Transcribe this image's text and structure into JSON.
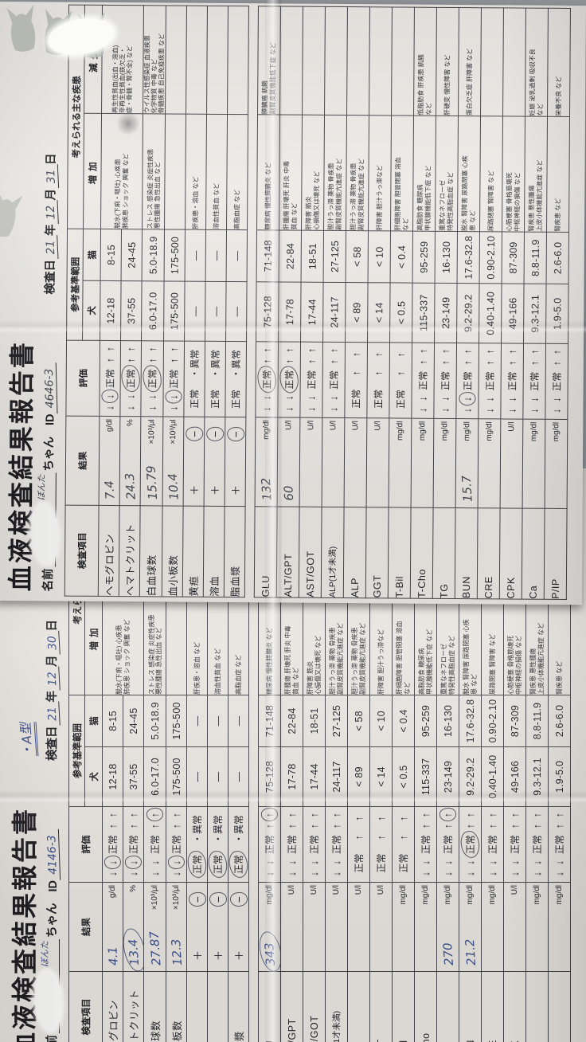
{
  "photo": {
    "background_color": "#8d9196",
    "paper_color_top_sheet": "#edeae6",
    "paper_color_bottom_sheet": "#e9e5e0",
    "pen_color_top_sheet": "#474a55",
    "pen_color_bottom_sheet": "#3c4f8c",
    "stamp_color": "#aeb2ab",
    "stamps": [
      "cat-stamp",
      "cat-stamp",
      "cat-stamp",
      "cat-stamp-partial"
    ]
  },
  "form": {
    "title": "血液検査結果報告書",
    "name_label": "名前",
    "name_suffix": "ちゃん",
    "id_label": "ID",
    "date_label": "検査日",
    "year_label": "年",
    "month_label": "月",
    "day_label": "日",
    "columns": {
      "item": "検査項目",
      "result": "結果",
      "evaluation": "評価",
      "range": "参考基準範囲",
      "dog": "犬",
      "cat": "猫",
      "disease": "考えられる主な疾患",
      "increase": "増加",
      "decrease": "減少"
    },
    "eval_glyphs": {
      "down": "↓",
      "up": "↑",
      "normal": "正常",
      "abnormal": "異常",
      "dot": "・"
    },
    "pm_glyphs": {
      "plus": "＋",
      "minus": "−"
    },
    "dash": "—",
    "table1_rows": [
      {
        "name": "ヘモグロビン",
        "unit": "g/dl",
        "eval_type": "full",
        "dog": "12-18",
        "cat": "8-15",
        "increase": "脱水(下痢・嘔吐) 心疾患\n肺疾患 ショック 興奮 など",
        "decrease": "再生性貧血(出血・溶血)\n非再生性貧血(鉄欠乏・\n症・骨髄・腎不全) など",
        "disease_rowspan": 2
      },
      {
        "name": "ヘマトクリット",
        "unit": "%",
        "eval_type": "full",
        "dog": "37-55",
        "cat": "24-45",
        "disease_skip": true
      },
      {
        "name": "白血球数",
        "unit": "×10³/μl",
        "eval_type": "full",
        "dog": "6.0-17.0",
        "cat": "5.0-18.9",
        "increase": "ストレス 感染症 炎症性疾患\n悪性腫瘍 急性出血 など",
        "decrease": "ウイルス性感染症 血液疾患\n化学物質 中毒 など\n骨髄疾患 自己免疫疾患 など"
      },
      {
        "name": "血小板数",
        "unit": "×10³/μl",
        "eval_type": "full",
        "dog": "175-500",
        "cat": "175-500",
        "increase": "",
        "decrease": ""
      },
      {
        "name": "黄疸",
        "unit": "",
        "eval_type": "pm",
        "dog": "—",
        "cat": "—",
        "increase": "肝疾患・溶血 など",
        "decrease": ""
      },
      {
        "name": "溶血",
        "unit": "",
        "eval_type": "pm",
        "dog": "—",
        "cat": "—",
        "increase": "溶血性貧血 など",
        "decrease": ""
      },
      {
        "name": "脂血漿",
        "unit": "",
        "eval_type": "pm",
        "dog": "—",
        "cat": "—",
        "increase": "高脂血症 など",
        "decrease": ""
      }
    ],
    "table2_rows": [
      {
        "name": "GLU",
        "unit": "mg/dl",
        "eval_type": "full",
        "dog": "75-128",
        "cat": "71-148",
        "increase": "糖尿病 慢性膵臓炎 など",
        "decrease": "膵臓癌 飢餓\n副腎皮質機能低下症 など"
      },
      {
        "name": "ALT/GPT",
        "unit": "U/l",
        "eval_type": "full",
        "dog": "17-78",
        "cat": "22-84",
        "increase": "肝腫瘍 肝壊死 肝炎 中毒\n貧血 など",
        "decrease": ""
      },
      {
        "name": "AST/GOT",
        "unit": "U/l",
        "eval_type": "full",
        "dog": "17-44",
        "cat": "18-51",
        "increase": "肝障害 筋炎\n心損傷又は壊死 など",
        "decrease": ""
      },
      {
        "name": "ALP(1才未満)",
        "unit": "U/l",
        "eval_type": "full",
        "dog": "24-117",
        "cat": "27-125",
        "increase": "胆汁うっ滞 薬物 骨疾患\n副腎皮質機能亢進症 など",
        "decrease": "",
        "name_small": true
      },
      {
        "name": "ALP",
        "unit": "U/l",
        "eval_type": "up",
        "dog": "< 89",
        "cat": "< 58",
        "increase": "胆汁うっ滞 薬物 骨疾患\n副腎皮質機能亢進症 など",
        "decrease": ""
      },
      {
        "name": "GGT",
        "unit": "U/l",
        "eval_type": "up",
        "dog": "< 14",
        "cat": "< 10",
        "increase": "肝障害 胆汁うっ滞など",
        "decrease": ""
      },
      {
        "name": "T-Bil",
        "unit": "mg/dl",
        "eval_type": "up",
        "dog": "< 0.5",
        "cat": "< 0.4",
        "increase": "肝細胞障害 胆管閉塞 溶血\nなど",
        "decrease": ""
      },
      {
        "name": "T-Cho",
        "unit": "mg/dl",
        "eval_type": "full",
        "dog": "115-337",
        "cat": "95-259",
        "increase": "高脂肪食 糖尿病\n甲状腺機能低下症 など",
        "decrease": "低脂肪食 肝疾患 飢餓\nなど"
      },
      {
        "name": "TG",
        "unit": "mg/dl",
        "eval_type": "full",
        "dog": "23-149",
        "cat": "16-130",
        "increase": "重篤なネフローゼ\n特発性高脂血症 など",
        "decrease": "肝硬変 慢性障害 など"
      },
      {
        "name": "BUN",
        "unit": "mg/dl",
        "eval_type": "full",
        "dog": "9.2-29.2",
        "cat": "17.6-32.8",
        "increase": "脱水 腎障害 尿路閉塞 心疾\n患 など",
        "decrease": "蛋白欠乏症 肝障害 など"
      },
      {
        "name": "CRE",
        "unit": "mg/dl",
        "eval_type": "full",
        "dog": "0.40-1.40",
        "cat": "0.90-2.10",
        "increase": "尿路閉塞 腎障害 など",
        "decrease": ""
      },
      {
        "name": "CPK",
        "unit": "U/l",
        "eval_type": "full",
        "dog": "49-166",
        "cat": "87-309",
        "increase": "心筋梗塞 骨格筋壊死\n中枢神経の損傷 など",
        "decrease": ""
      },
      {
        "name": "Ca",
        "unit": "mg/dl",
        "eval_type": "full",
        "dog": "9.3-12.1",
        "cat": "8.8-11.9",
        "increase": "腎疾患 悪性腫瘍\n上皮小体機能亢進症 など",
        "decrease": "妊娠 泌乳過剰 吸収不良\nなど"
      },
      {
        "name": "P/IP",
        "unit": "mg/dl",
        "eval_type": "full",
        "dog": "1.9-5.0",
        "cat": "2.6-6.0",
        "increase": "腎疾患 など",
        "decrease": "栄養不良 など"
      }
    ]
  },
  "documents": {
    "top": {
      "name_hand": "ぼんた",
      "id_value": "4646-3",
      "date": {
        "year": "21",
        "month": "12",
        "day": "31"
      },
      "t1_results": [
        {
          "value": "7.4",
          "eval": "low"
        },
        {
          "value": "24.3",
          "eval": "normal"
        },
        {
          "value": "15.79",
          "eval": "normal"
        },
        {
          "value": "10.4",
          "eval": "low"
        },
        {
          "neg_circled": true
        },
        {
          "neg_circled": true
        },
        {
          "neg_circled": true
        }
      ],
      "t2_results": [
        {
          "value": "132",
          "eval": "normal"
        },
        {
          "value": "60",
          "eval": "normal"
        },
        {},
        {},
        {},
        {},
        {},
        {},
        {},
        {
          "value": "15.7",
          "eval": "low"
        },
        {},
        {},
        {},
        {}
      ]
    },
    "bottom": {
      "name_hand": "ぼんた",
      "id_value": "4146-3",
      "blood_type_note": "・A型",
      "date": {
        "year": "21",
        "month": "12",
        "day": "30"
      },
      "t1_results": [
        {
          "value": "4.1",
          "eval": "low"
        },
        {
          "value": "13.4",
          "eval": "low",
          "value_circled": true
        },
        {
          "value": "27.87",
          "eval": "high"
        },
        {
          "value": "12.3",
          "eval": "low"
        },
        {
          "neg_circled": true,
          "eval": "normal"
        },
        {
          "neg_circled": true,
          "eval": "normal"
        },
        {
          "neg_circled": true,
          "eval": "normal"
        }
      ],
      "t2_results": [
        {
          "value": "343",
          "eval": "high",
          "value_circled": true
        },
        {},
        {},
        {},
        {},
        {},
        {},
        {},
        {
          "value": "270",
          "eval": "high"
        },
        {
          "value": "21.2",
          "eval": "normal"
        },
        {},
        {},
        {},
        {}
      ]
    }
  }
}
